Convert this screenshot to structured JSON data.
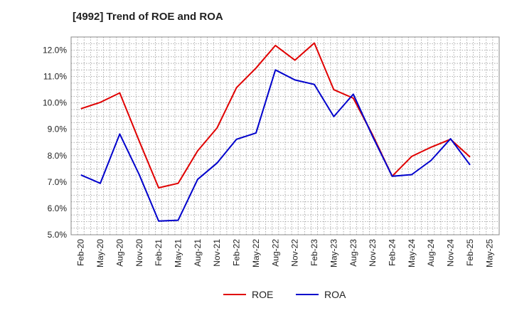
{
  "chart_data": {
    "type": "line",
    "title": "[4992]  Trend of ROE and ROA",
    "x": [
      "Feb-20",
      "May-20",
      "Aug-20",
      "Nov-20",
      "Feb-21",
      "May-21",
      "Aug-21",
      "Nov-21",
      "Feb-22",
      "May-22",
      "Aug-22",
      "Nov-22",
      "Feb-23",
      "May-23",
      "Aug-23",
      "Nov-23",
      "Feb-24",
      "May-24",
      "Aug-24",
      "Nov-24",
      "Feb-25",
      "May-25"
    ],
    "ylim": [
      5.0,
      12.5
    ],
    "yticks": [
      "5.0%",
      "6.0%",
      "7.0%",
      "8.0%",
      "9.0%",
      "10.0%",
      "11.0%",
      "12.0%"
    ],
    "grid": true,
    "legend": "bottom",
    "series": [
      {
        "name": "ROE",
        "color": "#e00000",
        "values": [
          9.78,
          10.02,
          10.38,
          8.55,
          6.78,
          6.95,
          8.18,
          9.05,
          10.58,
          11.32,
          12.18,
          11.62,
          12.27,
          10.5,
          10.18,
          8.78,
          7.22,
          7.97,
          8.32,
          8.62,
          7.95,
          null
        ]
      },
      {
        "name": "ROA",
        "color": "#0000cc",
        "values": [
          7.27,
          6.95,
          8.82,
          7.28,
          5.52,
          5.55,
          7.1,
          7.72,
          8.62,
          8.86,
          11.25,
          10.87,
          10.7,
          9.48,
          10.33,
          8.72,
          7.22,
          7.28,
          7.82,
          8.64,
          7.65,
          null
        ]
      }
    ]
  }
}
